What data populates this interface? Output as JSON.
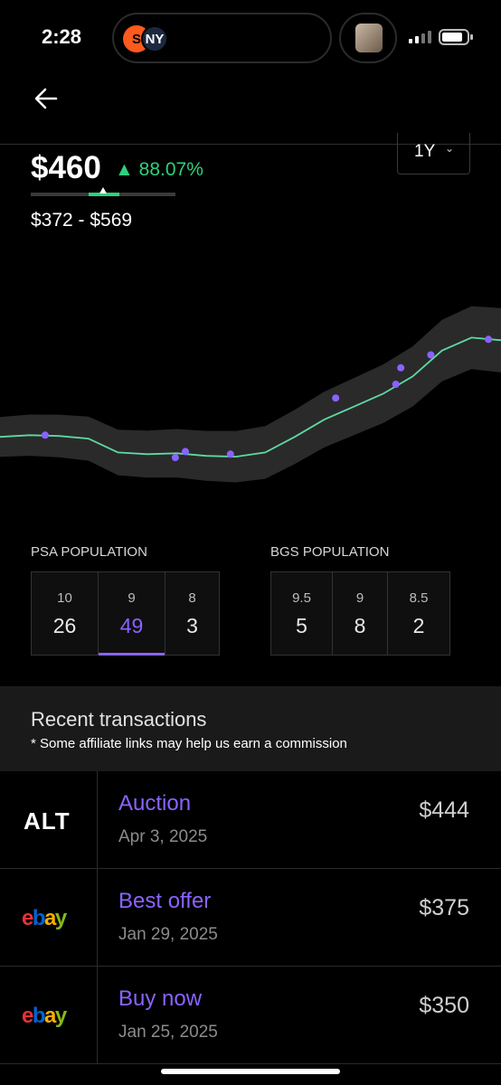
{
  "status": {
    "time": "2:28"
  },
  "header": {
    "back_icon": "arrow-left-icon"
  },
  "price": {
    "value": "$460",
    "change_arrow": "▲",
    "change": "88.07%",
    "range": "$372 - $569",
    "period": "1Y"
  },
  "colors": {
    "accent": "#8a63ff",
    "positive": "#2fd07d",
    "band": "#2a2a2b",
    "background": "#000000"
  },
  "chart_data": {
    "type": "line",
    "series": [
      {
        "values": [
          460,
          462,
          461,
          458,
          442,
          440,
          441,
          438,
          437,
          442,
          460,
          480,
          495,
          510,
          530,
          560,
          575,
          572
        ]
      }
    ],
    "sales": [
      462,
      436,
      443,
      440,
      505,
      521,
      540,
      555,
      573
    ]
  },
  "psa": {
    "title": "PSA POPULATION",
    "cells": [
      {
        "grade": "10",
        "count": "26"
      },
      {
        "grade": "9",
        "count": "49"
      },
      {
        "grade": "8",
        "count": "3"
      }
    ]
  },
  "bgs": {
    "title": "BGS POPULATION",
    "cells": [
      {
        "grade": "9.5",
        "count": "5"
      },
      {
        "grade": "9",
        "count": "8"
      },
      {
        "grade": "8.5",
        "count": "2"
      }
    ]
  },
  "transactions": {
    "title": "Recent transactions",
    "note": "* Some affiliate links may help us earn a commission",
    "rows": [
      {
        "source": "ALT",
        "type": "Auction",
        "date": "Apr 3, 2025",
        "price": "$444"
      },
      {
        "source": "ebay",
        "type": "Best offer",
        "date": "Jan 29, 2025",
        "price": "$375"
      },
      {
        "source": "ebay",
        "type": "Buy now",
        "date": "Jan 25, 2025",
        "price": "$350"
      }
    ]
  }
}
